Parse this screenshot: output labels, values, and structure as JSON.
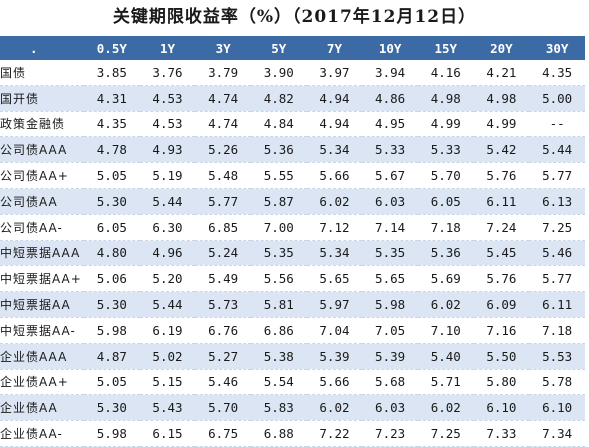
{
  "title": "关键期限收益率（%）（2017年12月12日）",
  "table": {
    "corner": ".",
    "columns": [
      "0.5Y",
      "1Y",
      "3Y",
      "5Y",
      "7Y",
      "10Y",
      "15Y",
      "20Y",
      "30Y"
    ],
    "rows": [
      {
        "label": "国债",
        "values": [
          "3.85",
          "3.76",
          "3.79",
          "3.90",
          "3.97",
          "3.94",
          "4.16",
          "4.21",
          "4.35"
        ]
      },
      {
        "label": "国开债",
        "values": [
          "4.31",
          "4.53",
          "4.74",
          "4.82",
          "4.94",
          "4.86",
          "4.98",
          "4.98",
          "5.00"
        ]
      },
      {
        "label": "政策金融债",
        "values": [
          "4.35",
          "4.53",
          "4.74",
          "4.84",
          "4.94",
          "4.95",
          "4.99",
          "4.99",
          "--"
        ]
      },
      {
        "label": "公司债AAA",
        "values": [
          "4.78",
          "4.93",
          "5.26",
          "5.36",
          "5.34",
          "5.33",
          "5.33",
          "5.42",
          "5.44"
        ]
      },
      {
        "label": "公司债AA+",
        "values": [
          "5.05",
          "5.19",
          "5.48",
          "5.55",
          "5.66",
          "5.67",
          "5.70",
          "5.76",
          "5.77"
        ]
      },
      {
        "label": "公司债AA",
        "values": [
          "5.30",
          "5.44",
          "5.77",
          "5.87",
          "6.02",
          "6.03",
          "6.05",
          "6.11",
          "6.13"
        ]
      },
      {
        "label": "公司债AA-",
        "values": [
          "6.05",
          "6.30",
          "6.85",
          "7.00",
          "7.12",
          "7.14",
          "7.18",
          "7.24",
          "7.25"
        ]
      },
      {
        "label": "中短票据AAA",
        "values": [
          "4.80",
          "4.96",
          "5.24",
          "5.35",
          "5.34",
          "5.35",
          "5.36",
          "5.45",
          "5.46"
        ]
      },
      {
        "label": "中短票据AA+",
        "values": [
          "5.06",
          "5.20",
          "5.49",
          "5.56",
          "5.65",
          "5.65",
          "5.69",
          "5.76",
          "5.77"
        ]
      },
      {
        "label": "中短票据AA",
        "values": [
          "5.30",
          "5.44",
          "5.73",
          "5.81",
          "5.97",
          "5.98",
          "6.02",
          "6.09",
          "6.11"
        ]
      },
      {
        "label": "中短票据AA-",
        "values": [
          "5.98",
          "6.19",
          "6.76",
          "6.86",
          "7.04",
          "7.05",
          "7.10",
          "7.16",
          "7.18"
        ]
      },
      {
        "label": "企业债AAA",
        "values": [
          "4.87",
          "5.02",
          "5.27",
          "5.38",
          "5.39",
          "5.39",
          "5.40",
          "5.50",
          "5.53"
        ]
      },
      {
        "label": "企业债AA+",
        "values": [
          "5.05",
          "5.15",
          "5.46",
          "5.54",
          "5.66",
          "5.68",
          "5.71",
          "5.80",
          "5.78"
        ]
      },
      {
        "label": "企业债AA",
        "values": [
          "5.30",
          "5.43",
          "5.70",
          "5.83",
          "6.02",
          "6.03",
          "6.02",
          "6.10",
          "6.10"
        ]
      },
      {
        "label": "企业债AA-",
        "values": [
          "5.98",
          "6.15",
          "6.75",
          "6.88",
          "7.22",
          "7.23",
          "7.25",
          "7.33",
          "7.34"
        ]
      }
    ]
  },
  "colors": {
    "header_bg": "#3c6aa5",
    "header_text": "#ffffff",
    "row_shade": "#dbe5f3",
    "row_plain": "#ffffff"
  }
}
